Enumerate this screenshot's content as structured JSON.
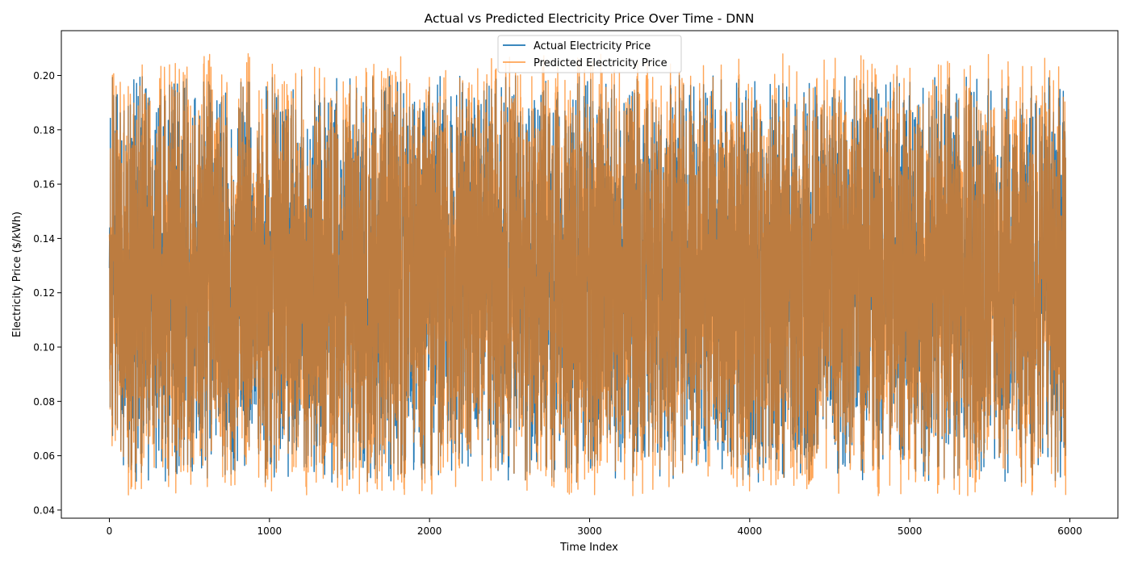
{
  "chart_data": {
    "type": "line",
    "title": "Actual vs Predicted Electricity Price Over Time - DNN",
    "xlabel": "Time Index",
    "ylabel": "Electricity Price ($/kWh)",
    "xlim": [
      -300,
      6300
    ],
    "ylim": [
      0.037,
      0.2165
    ],
    "x_ticks": [
      0,
      1000,
      2000,
      3000,
      4000,
      5000,
      6000
    ],
    "y_ticks": [
      0.04,
      0.06,
      0.08,
      0.1,
      0.12,
      0.14,
      0.16,
      0.18,
      0.2
    ],
    "y_tick_labels": [
      "0.04",
      "0.06",
      "0.08",
      "0.10",
      "0.12",
      "0.14",
      "0.16",
      "0.18",
      "0.20"
    ],
    "n_points": 5975,
    "legend_position": "top-center",
    "grid": false,
    "series": [
      {
        "name": "Actual Electricity Price",
        "color": "#1f77b4",
        "value_range": [
          0.05,
          0.2
        ],
        "x_range": [
          0,
          5975
        ]
      },
      {
        "name": "Predicted Electricity Price",
        "color": "#ff7f0e",
        "opacity": 0.7,
        "value_range": [
          0.045,
          0.208
        ],
        "x_range": [
          0,
          5975
        ]
      }
    ]
  }
}
